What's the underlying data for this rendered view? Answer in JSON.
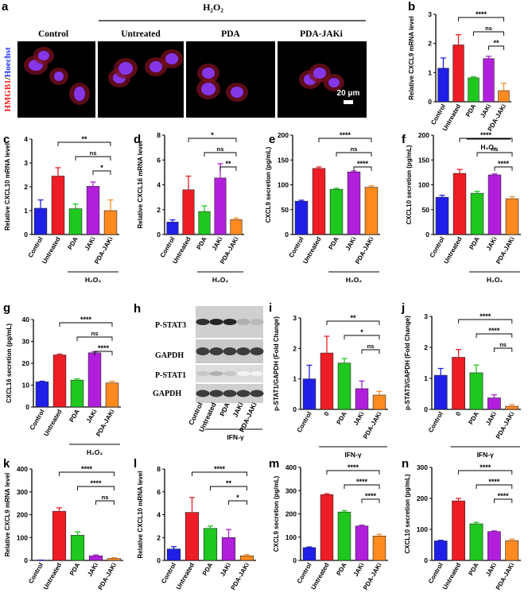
{
  "colors": {
    "control": "#1f1fe8",
    "untreated": "#ee1c24",
    "pda": "#1ec81e",
    "jaki": "#b21fdc",
    "pda_jaki": "#ff8a1e",
    "hmgb1_red": "#ff1a1a",
    "hoechst_blue": "#2233ff",
    "scalebar": "#ffffff"
  },
  "panel_a": {
    "letter": "a",
    "group_label": "H₂O₂",
    "columns": [
      "Control",
      "Untreated",
      "PDA",
      "PDA-JAKi"
    ],
    "ylabel_red": "HMGB1",
    "ylabel_sep": "/",
    "ylabel_blue": "Hoechst",
    "scalebar_label": "20 μm"
  },
  "panel_h": {
    "letter": "h",
    "bands": [
      "P-STAT3",
      "GAPDH",
      "P-STAT1",
      "GAPDH"
    ],
    "lanes": [
      "Control",
      "Untreated",
      "PDA",
      "JAKi",
      "PDA-JAKi"
    ],
    "group_label": "IFN-γ"
  },
  "chart_data": [
    {
      "id": "b",
      "letter": "b",
      "type": "bar",
      "categories": [
        "Control",
        "Untreated",
        "PDA",
        "JAKi",
        "PDA-JAKi"
      ],
      "values": [
        1.15,
        1.95,
        0.82,
        1.48,
        0.38
      ],
      "errors": [
        0.35,
        0.35,
        0.04,
        0.08,
        0.25
      ],
      "ylabel": "Relative CXCL9 mRNA level",
      "ylim": [
        0,
        3
      ],
      "yticks": [
        0,
        1,
        2,
        3
      ],
      "group_label": "H₂O₂",
      "group_from": 2,
      "group_to": 4,
      "sig": [
        {
          "from": 1,
          "to": 4,
          "label": "****"
        },
        {
          "from": 2,
          "to": 4,
          "label": "ns"
        },
        {
          "from": 3,
          "to": 4,
          "label": "**"
        }
      ]
    },
    {
      "id": "c",
      "letter": "c",
      "type": "bar",
      "categories": [
        "Control",
        "Untreated",
        "PDA",
        "JAKi",
        "PDA-JAKi"
      ],
      "values": [
        1.1,
        2.45,
        1.08,
        2.02,
        1.0
      ],
      "errors": [
        0.35,
        0.35,
        0.2,
        0.18,
        0.45
      ],
      "ylabel": "Relative CXCL10 mRNA level",
      "ylim": [
        0,
        4
      ],
      "yticks": [
        0,
        1,
        2,
        3,
        4
      ],
      "group_label": "H₂O₂",
      "group_from": 2,
      "group_to": 4,
      "sig": [
        {
          "from": 1,
          "to": 4,
          "label": "**"
        },
        {
          "from": 2,
          "to": 4,
          "label": "ns"
        },
        {
          "from": 3,
          "to": 4,
          "label": "*"
        }
      ]
    },
    {
      "id": "d",
      "letter": "d",
      "type": "bar",
      "categories": [
        "Control",
        "Untreated",
        "PDA",
        "JAKi",
        "PDA-JAKi"
      ],
      "values": [
        1.0,
        3.6,
        1.85,
        4.55,
        1.2
      ],
      "errors": [
        0.18,
        1.1,
        0.45,
        1.15,
        0.12
      ],
      "ylabel": "Relative CXCL16 mRNA level",
      "ylim": [
        0,
        8
      ],
      "yticks": [
        0,
        2,
        4,
        6,
        8
      ],
      "group_label": "H₂O₂",
      "group_from": 2,
      "group_to": 4,
      "sig": [
        {
          "from": 1,
          "to": 4,
          "label": "*"
        },
        {
          "from": 2,
          "to": 4,
          "label": "ns"
        },
        {
          "from": 3,
          "to": 4,
          "label": "**"
        }
      ]
    },
    {
      "id": "e",
      "letter": "e",
      "type": "bar",
      "categories": [
        "Control",
        "Untreated",
        "PDA",
        "JAKi",
        "PDA-JAKi"
      ],
      "values": [
        67,
        133,
        91,
        126,
        95
      ],
      "errors": [
        2,
        3,
        2,
        2,
        3
      ],
      "ylabel": "CXCL9 secretion (pg/mL)",
      "ylim": [
        0,
        200
      ],
      "yticks": [
        0,
        50,
        100,
        150,
        200
      ],
      "group_label": "H₂O₂",
      "group_from": 2,
      "group_to": 4,
      "sig": [
        {
          "from": 1,
          "to": 4,
          "label": "****"
        },
        {
          "from": 2,
          "to": 4,
          "label": "ns"
        },
        {
          "from": 3,
          "to": 4,
          "label": "****"
        }
      ]
    },
    {
      "id": "f",
      "letter": "f",
      "type": "bar",
      "categories": [
        "Control",
        "Untreated",
        "PDA",
        "JAKi",
        "PDA-JAKi"
      ],
      "values": [
        75,
        123,
        83,
        120,
        72
      ],
      "errors": [
        4,
        8,
        4,
        2,
        4
      ],
      "ylabel": "CXCL10 secretion (pg/mL)",
      "ylim": [
        0,
        200
      ],
      "yticks": [
        0,
        50,
        100,
        150,
        200
      ],
      "group_label": "H₂O₂",
      "group_from": 2,
      "group_to": 4,
      "sig": [
        {
          "from": 1,
          "to": 4,
          "label": "****"
        },
        {
          "from": 2,
          "to": 4,
          "label": "ns"
        },
        {
          "from": 3,
          "to": 4,
          "label": "****"
        }
      ]
    },
    {
      "id": "g",
      "letter": "g",
      "type": "bar",
      "categories": [
        "Control",
        "Untreated",
        "PDA",
        "JAKi",
        "PDA-JAKi"
      ],
      "values": [
        11.5,
        23.8,
        12.3,
        24.8,
        11.0
      ],
      "errors": [
        0.3,
        0.4,
        0.6,
        0.5,
        0.8
      ],
      "ylabel": "CXCL16 secretion (pg/mL)",
      "ylim": [
        0,
        40
      ],
      "yticks": [
        0,
        10,
        20,
        30,
        40
      ],
      "group_label": "H₂O₂",
      "group_from": 2,
      "group_to": 4,
      "sig": [
        {
          "from": 1,
          "to": 4,
          "label": "****"
        },
        {
          "from": 2,
          "to": 4,
          "label": "ns"
        },
        {
          "from": 3,
          "to": 4,
          "label": "****"
        }
      ]
    },
    {
      "id": "i",
      "letter": "i",
      "type": "bar",
      "categories": [
        "Control",
        "0",
        "PDA",
        "JAKi",
        "PDA-JAKi"
      ],
      "values": [
        1.0,
        1.85,
        1.52,
        0.68,
        0.47
      ],
      "errors": [
        0.45,
        0.55,
        0.15,
        0.25,
        0.12
      ],
      "ylabel": "p-STAT1/GAPDH (Fold Change)",
      "ylim": [
        0,
        3
      ],
      "yticks": [
        0,
        1,
        2,
        3
      ],
      "group_label": "IFN-γ",
      "group_from": 1,
      "group_to": 4,
      "sig": [
        {
          "from": 1,
          "to": 4,
          "label": "**"
        },
        {
          "from": 2,
          "to": 4,
          "label": "*"
        },
        {
          "from": 3,
          "to": 4,
          "label": "ns"
        }
      ]
    },
    {
      "id": "j",
      "letter": "j",
      "type": "bar",
      "categories": [
        "Control",
        "0",
        "PDA",
        "JAKi",
        "PDA-JAKi"
      ],
      "values": [
        1.1,
        1.68,
        1.18,
        0.37,
        0.1
      ],
      "errors": [
        0.22,
        0.25,
        0.25,
        0.1,
        0.05
      ],
      "ylabel": "p-STAT3/GAPDH (Fold Change)",
      "ylim": [
        0,
        3
      ],
      "yticks": [
        0,
        1,
        2,
        3
      ],
      "group_label": "IFN-γ",
      "group_from": 1,
      "group_to": 4,
      "sig": [
        {
          "from": 1,
          "to": 4,
          "label": "****"
        },
        {
          "from": 2,
          "to": 4,
          "label": "****"
        },
        {
          "from": 3,
          "to": 4,
          "label": "ns"
        }
      ]
    },
    {
      "id": "k",
      "letter": "k",
      "type": "bar",
      "categories": [
        "Control",
        "Untreated",
        "PDA",
        "JAKi",
        "PDA-JAKi"
      ],
      "values": [
        1,
        215,
        110,
        20,
        8
      ],
      "errors": [
        0.5,
        15,
        15,
        4,
        4
      ],
      "ylabel": "Relative CXCL9 mRNA level",
      "ylim": [
        0,
        400
      ],
      "yticks": [
        0,
        100,
        200,
        300,
        400
      ],
      "group_label": "IFN-γ",
      "group_from": 1,
      "group_to": 4,
      "sig": [
        {
          "from": 1,
          "to": 4,
          "label": "****"
        },
        {
          "from": 2,
          "to": 4,
          "label": "****"
        },
        {
          "from": 3,
          "to": 4,
          "label": "ns"
        }
      ]
    },
    {
      "id": "l",
      "letter": "l",
      "type": "bar",
      "categories": [
        "Control",
        "Untreated",
        "PDA",
        "JAKi",
        "PDA-JAKi"
      ],
      "values": [
        1.0,
        4.2,
        2.8,
        2.0,
        0.4
      ],
      "errors": [
        0.2,
        1.3,
        0.2,
        0.7,
        0.1
      ],
      "ylabel": "Relative CXCL10 mRNA level",
      "ylim": [
        0,
        8
      ],
      "yticks": [
        0,
        2,
        4,
        6,
        8
      ],
      "group_label": "IFN-γ",
      "group_from": 1,
      "group_to": 4,
      "sig": [
        {
          "from": 1,
          "to": 4,
          "label": "****"
        },
        {
          "from": 2,
          "to": 4,
          "label": "**"
        },
        {
          "from": 3,
          "to": 4,
          "label": "*"
        }
      ]
    },
    {
      "id": "m",
      "letter": "m",
      "type": "bar",
      "categories": [
        "Control",
        "Untreated",
        "PDA",
        "JAKi",
        "PDA-JAKi"
      ],
      "values": [
        55,
        283,
        208,
        148,
        105
      ],
      "errors": [
        3,
        4,
        6,
        4,
        7
      ],
      "ylabel": "CXCL9 secretion (pg/mL)",
      "ylim": [
        0,
        400
      ],
      "yticks": [
        0,
        100,
        200,
        300,
        400
      ],
      "group_label": "IFN-γ",
      "group_from": 1,
      "group_to": 4,
      "sig": [
        {
          "from": 1,
          "to": 4,
          "label": "****"
        },
        {
          "from": 2,
          "to": 4,
          "label": "****"
        },
        {
          "from": 3,
          "to": 4,
          "label": "****"
        }
      ]
    },
    {
      "id": "n",
      "letter": "n",
      "type": "bar",
      "categories": [
        "Control",
        "Untreated",
        "PDA",
        "JAKi",
        "PDA-JAKi"
      ],
      "values": [
        63,
        192,
        118,
        93,
        64
      ],
      "errors": [
        2,
        8,
        5,
        2,
        5
      ],
      "ylabel": "CXCL10 secretion (pg/mL)",
      "ylim": [
        0,
        300
      ],
      "yticks": [
        0,
        100,
        200,
        300
      ],
      "group_label": "IFN-γ",
      "group_from": 1,
      "group_to": 4,
      "sig": [
        {
          "from": 1,
          "to": 4,
          "label": "****"
        },
        {
          "from": 2,
          "to": 4,
          "label": "****"
        },
        {
          "from": 3,
          "to": 4,
          "label": "****"
        }
      ]
    }
  ]
}
